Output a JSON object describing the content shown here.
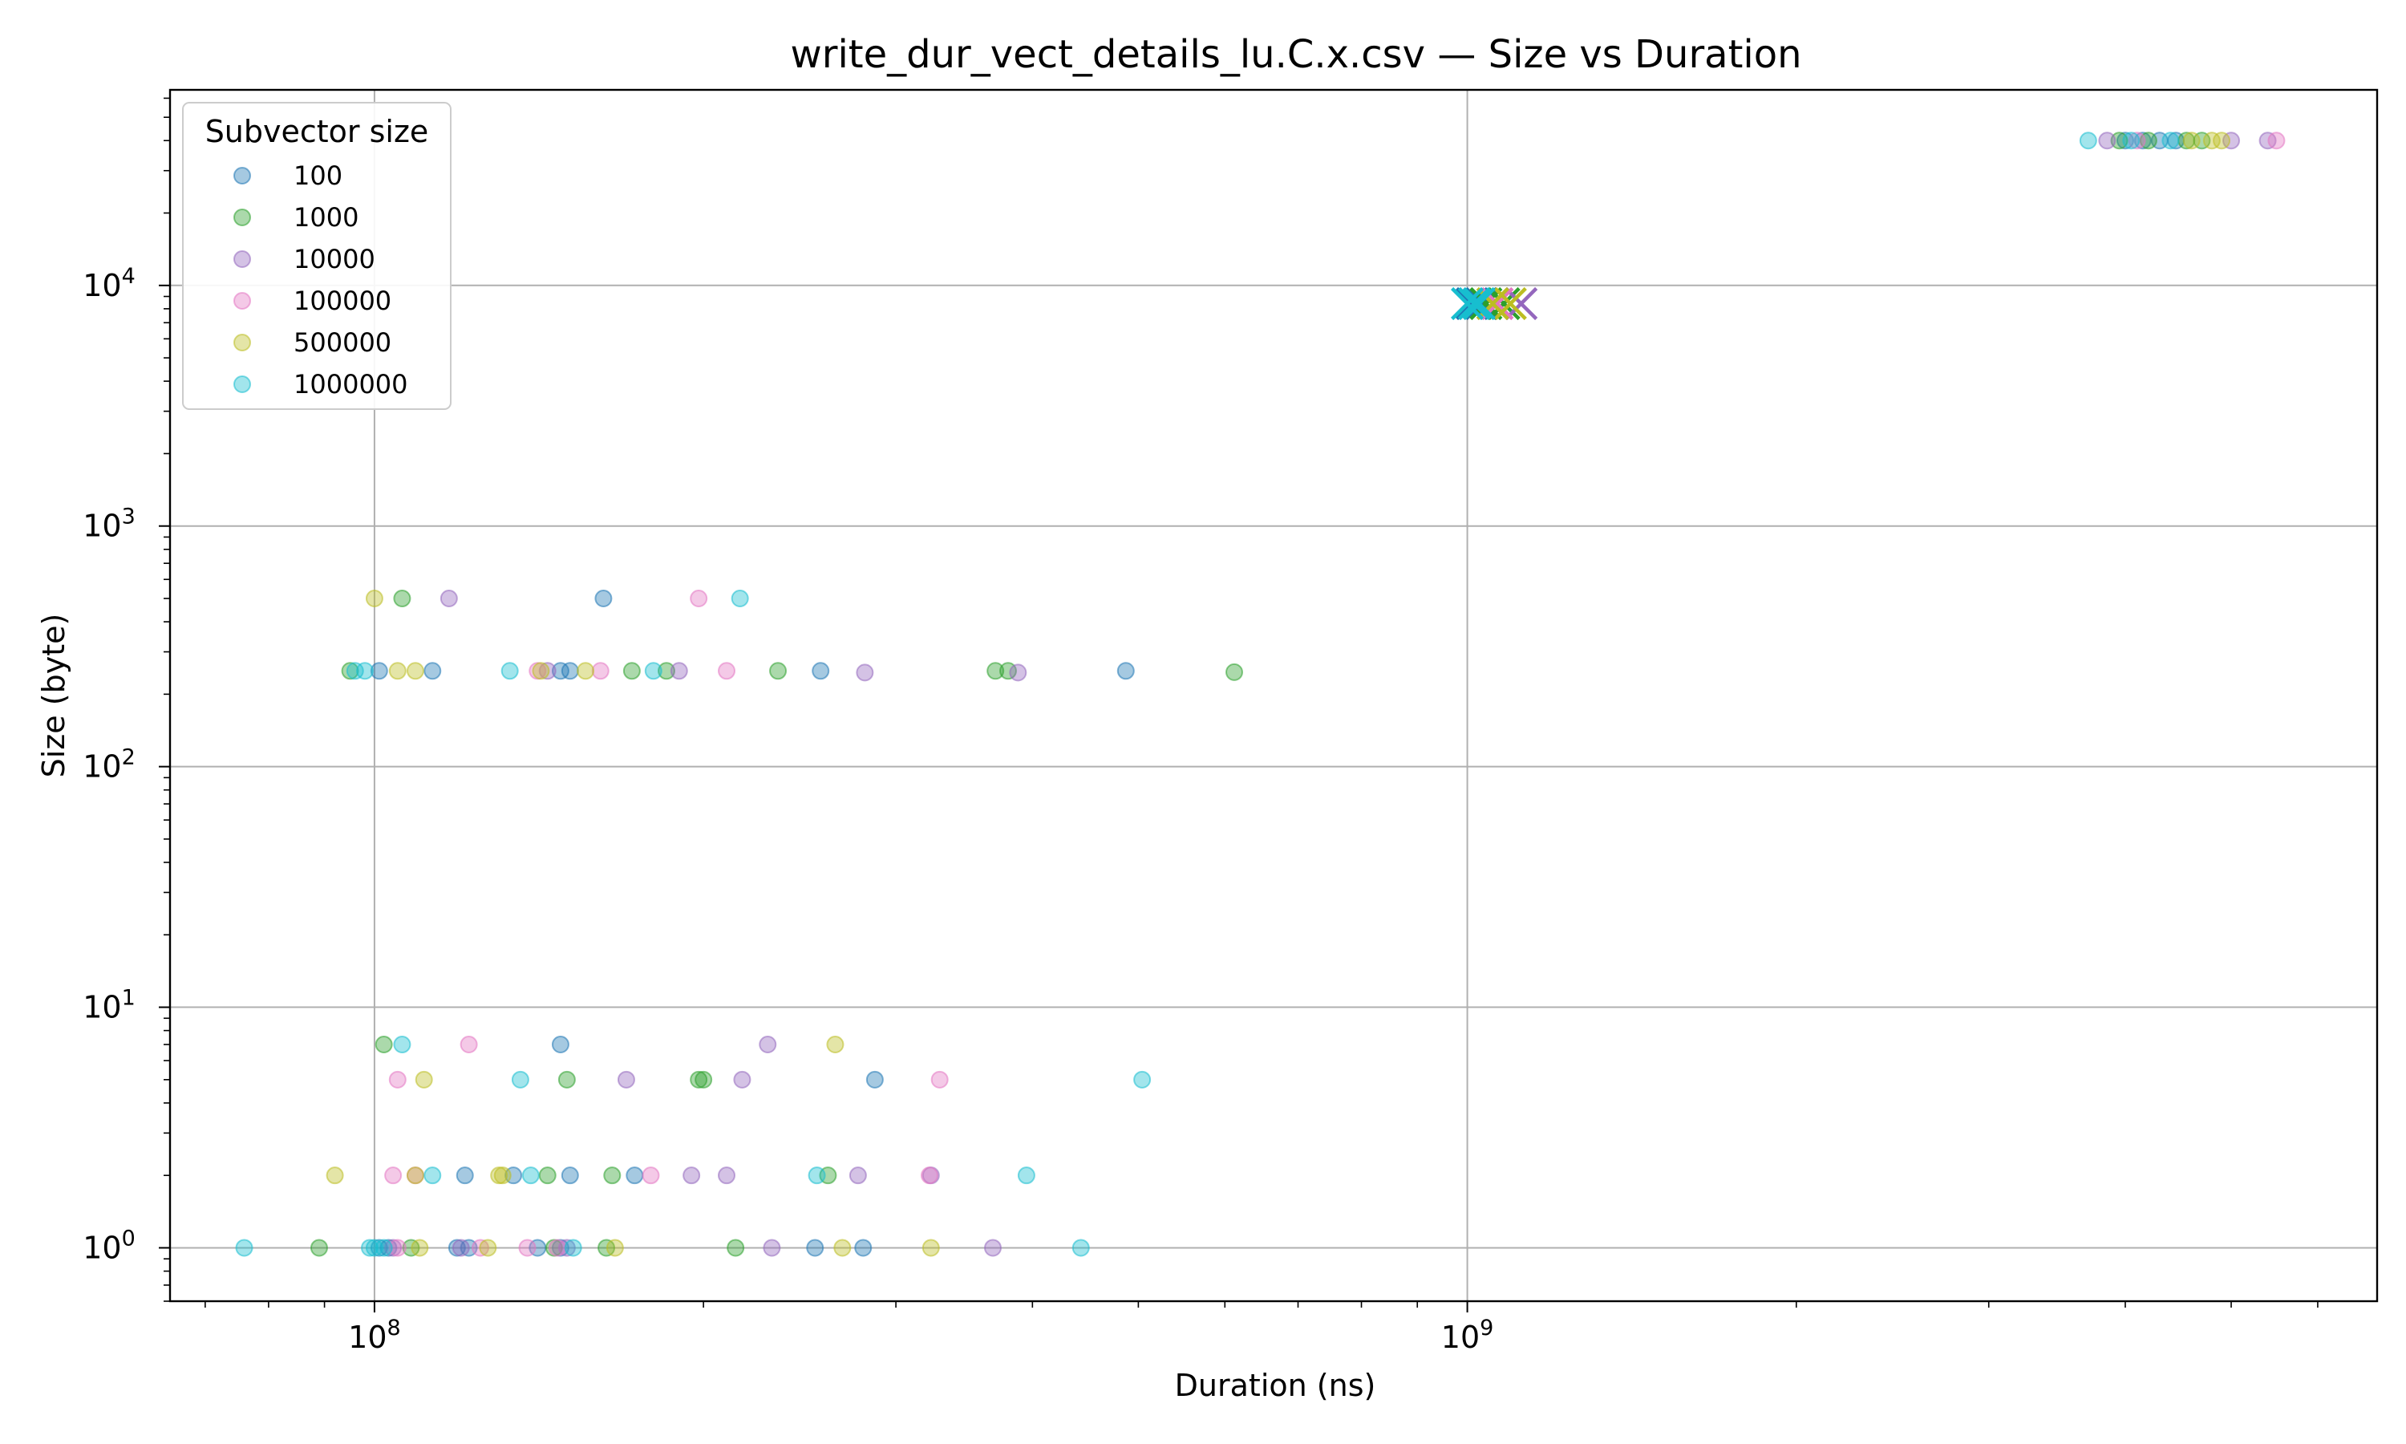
{
  "chart_data": {
    "type": "scatter",
    "title": "write_dur_vect_details_lu.C.x.csv — Size vs Duration",
    "xlabel": "Duration (ns)",
    "ylabel": "Size (byte)",
    "xscale": "log",
    "yscale": "log",
    "xlim": [
      65000000,
      6800000000
    ],
    "ylim": [
      0.6,
      65000
    ],
    "grid": true,
    "legend_placement": "top-left",
    "legend_title": "Subvector size",
    "x_ticks": [
      {
        "base": "10",
        "exp": "8",
        "value": 100000000
      },
      {
        "base": "10",
        "exp": "9",
        "value": 1000000000
      }
    ],
    "y_ticks": [
      {
        "base": "10",
        "exp": "0",
        "value": 1
      },
      {
        "base": "10",
        "exp": "1",
        "value": 10
      },
      {
        "base": "10",
        "exp": "2",
        "value": 100
      },
      {
        "base": "10",
        "exp": "3",
        "value": 1000
      },
      {
        "base": "10",
        "exp": "4",
        "value": 10000
      }
    ],
    "series": [
      {
        "name": "100",
        "color": "#1f77b4",
        "points": [
          [
            101000000,
            1
          ],
          [
            103000000,
            1
          ],
          [
            119000000,
            1
          ],
          [
            122000000,
            1
          ],
          [
            141000000,
            1
          ],
          [
            148000000,
            1
          ],
          [
            253000000,
            1
          ],
          [
            280000000,
            1
          ],
          [
            134000000,
            2
          ],
          [
            151000000,
            2
          ],
          [
            173000000,
            2
          ],
          [
            121000000,
            2
          ],
          [
            148000000,
            7
          ],
          [
            287000000,
            5
          ],
          [
            101000000,
            250
          ],
          [
            113000000,
            250
          ],
          [
            148000000,
            250
          ],
          [
            151000000,
            250
          ],
          [
            162000000,
            500
          ],
          [
            256000000,
            250
          ],
          [
            487000000,
            250
          ],
          [
            4000000000,
            40000
          ],
          [
            4150000000,
            40000
          ],
          [
            4300000000,
            40000
          ],
          [
            4450000000,
            40000
          ]
        ],
        "markers": [
          [
            1010000000,
            8400
          ],
          [
            1030000000,
            8400
          ]
        ]
      },
      {
        "name": "1000",
        "color": "#2ca02c",
        "points": [
          [
            89000000,
            1
          ],
          [
            108000000,
            1
          ],
          [
            146000000,
            1
          ],
          [
            163000000,
            1
          ],
          [
            214000000,
            1
          ],
          [
            165000000,
            2
          ],
          [
            144000000,
            2
          ],
          [
            260000000,
            2
          ],
          [
            102000000,
            7
          ],
          [
            150000000,
            5
          ],
          [
            198000000,
            5
          ],
          [
            200000000,
            5
          ],
          [
            95000000,
            250
          ],
          [
            172000000,
            250
          ],
          [
            185000000,
            250
          ],
          [
            234000000,
            250
          ],
          [
            370000000,
            250
          ],
          [
            380000000,
            250
          ],
          [
            612000000,
            247
          ],
          [
            106000000,
            500
          ],
          [
            3950000000,
            40000
          ],
          [
            4200000000,
            40000
          ],
          [
            4550000000,
            40000
          ],
          [
            4700000000,
            40000
          ]
        ],
        "markers": [
          [
            1040000000,
            8400
          ],
          [
            1080000000,
            8400
          ]
        ]
      },
      {
        "name": "10000",
        "color": "#9467bd",
        "points": [
          [
            104000000,
            1
          ],
          [
            120000000,
            1
          ],
          [
            150000000,
            1
          ],
          [
            231000000,
            1
          ],
          [
            368000000,
            1
          ],
          [
            195000000,
            2
          ],
          [
            210000000,
            2
          ],
          [
            277000000,
            2
          ],
          [
            323000000,
            2
          ],
          [
            170000000,
            5
          ],
          [
            217000000,
            5
          ],
          [
            229000000,
            7
          ],
          [
            144000000,
            250
          ],
          [
            190000000,
            250
          ],
          [
            281000000,
            246
          ],
          [
            388000000,
            246
          ],
          [
            117000000,
            500
          ],
          [
            3850000000,
            40000
          ],
          [
            5000000000,
            40000
          ],
          [
            5400000000,
            40000
          ]
        ],
        "markers": [
          [
            1120000000,
            8400
          ]
        ]
      },
      {
        "name": "100000",
        "color": "#e377c2",
        "points": [
          [
            105000000,
            1
          ],
          [
            125000000,
            1
          ],
          [
            138000000,
            1
          ],
          [
            147000000,
            1
          ],
          [
            104000000,
            2
          ],
          [
            109000000,
            2
          ],
          [
            179000000,
            2
          ],
          [
            322000000,
            2
          ],
          [
            105000000,
            5
          ],
          [
            329000000,
            5
          ],
          [
            122000000,
            7
          ],
          [
            141000000,
            250
          ],
          [
            161000000,
            250
          ],
          [
            210000000,
            250
          ],
          [
            198000000,
            500
          ],
          [
            4100000000,
            40000
          ],
          [
            5500000000,
            40000
          ]
        ],
        "markers": [
          [
            1065000000,
            8400
          ]
        ]
      },
      {
        "name": "500000",
        "color": "#bcbd22",
        "points": [
          [
            110000000,
            1
          ],
          [
            127000000,
            1
          ],
          [
            166000000,
            1
          ],
          [
            268000000,
            1
          ],
          [
            323000000,
            1
          ],
          [
            92000000,
            2
          ],
          [
            130000000,
            2
          ],
          [
            131000000,
            2
          ],
          [
            109000000,
            2
          ],
          [
            111000000,
            5
          ],
          [
            264000000,
            7
          ],
          [
            105000000,
            250
          ],
          [
            109000000,
            250
          ],
          [
            156000000,
            250
          ],
          [
            142000000,
            250
          ],
          [
            100000000,
            500
          ],
          [
            4600000000,
            40000
          ],
          [
            4800000000,
            40000
          ],
          [
            4900000000,
            40000
          ]
        ],
        "markers": [
          [
            1055000000,
            8400
          ],
          [
            1095000000,
            8400
          ]
        ]
      },
      {
        "name": "1000000",
        "color": "#17becf",
        "points": [
          [
            76000000,
            1
          ],
          [
            99000000,
            1
          ],
          [
            100000000,
            1
          ],
          [
            102000000,
            1
          ],
          [
            152000000,
            1
          ],
          [
            443000000,
            1
          ],
          [
            113000000,
            2
          ],
          [
            139000000,
            2
          ],
          [
            254000000,
            2
          ],
          [
            395000000,
            2
          ],
          [
            106000000,
            7
          ],
          [
            136000000,
            5
          ],
          [
            504000000,
            5
          ],
          [
            96000000,
            250
          ],
          [
            98000000,
            250
          ],
          [
            133000000,
            250
          ],
          [
            180000000,
            250
          ],
          [
            216000000,
            500
          ],
          [
            3700000000,
            40000
          ],
          [
            4050000000,
            40000
          ],
          [
            4400000000,
            40000
          ]
        ],
        "markers": [
          [
            1000000000,
            8400
          ],
          [
            1015000000,
            8400
          ],
          [
            1025000000,
            8400
          ]
        ]
      }
    ]
  }
}
